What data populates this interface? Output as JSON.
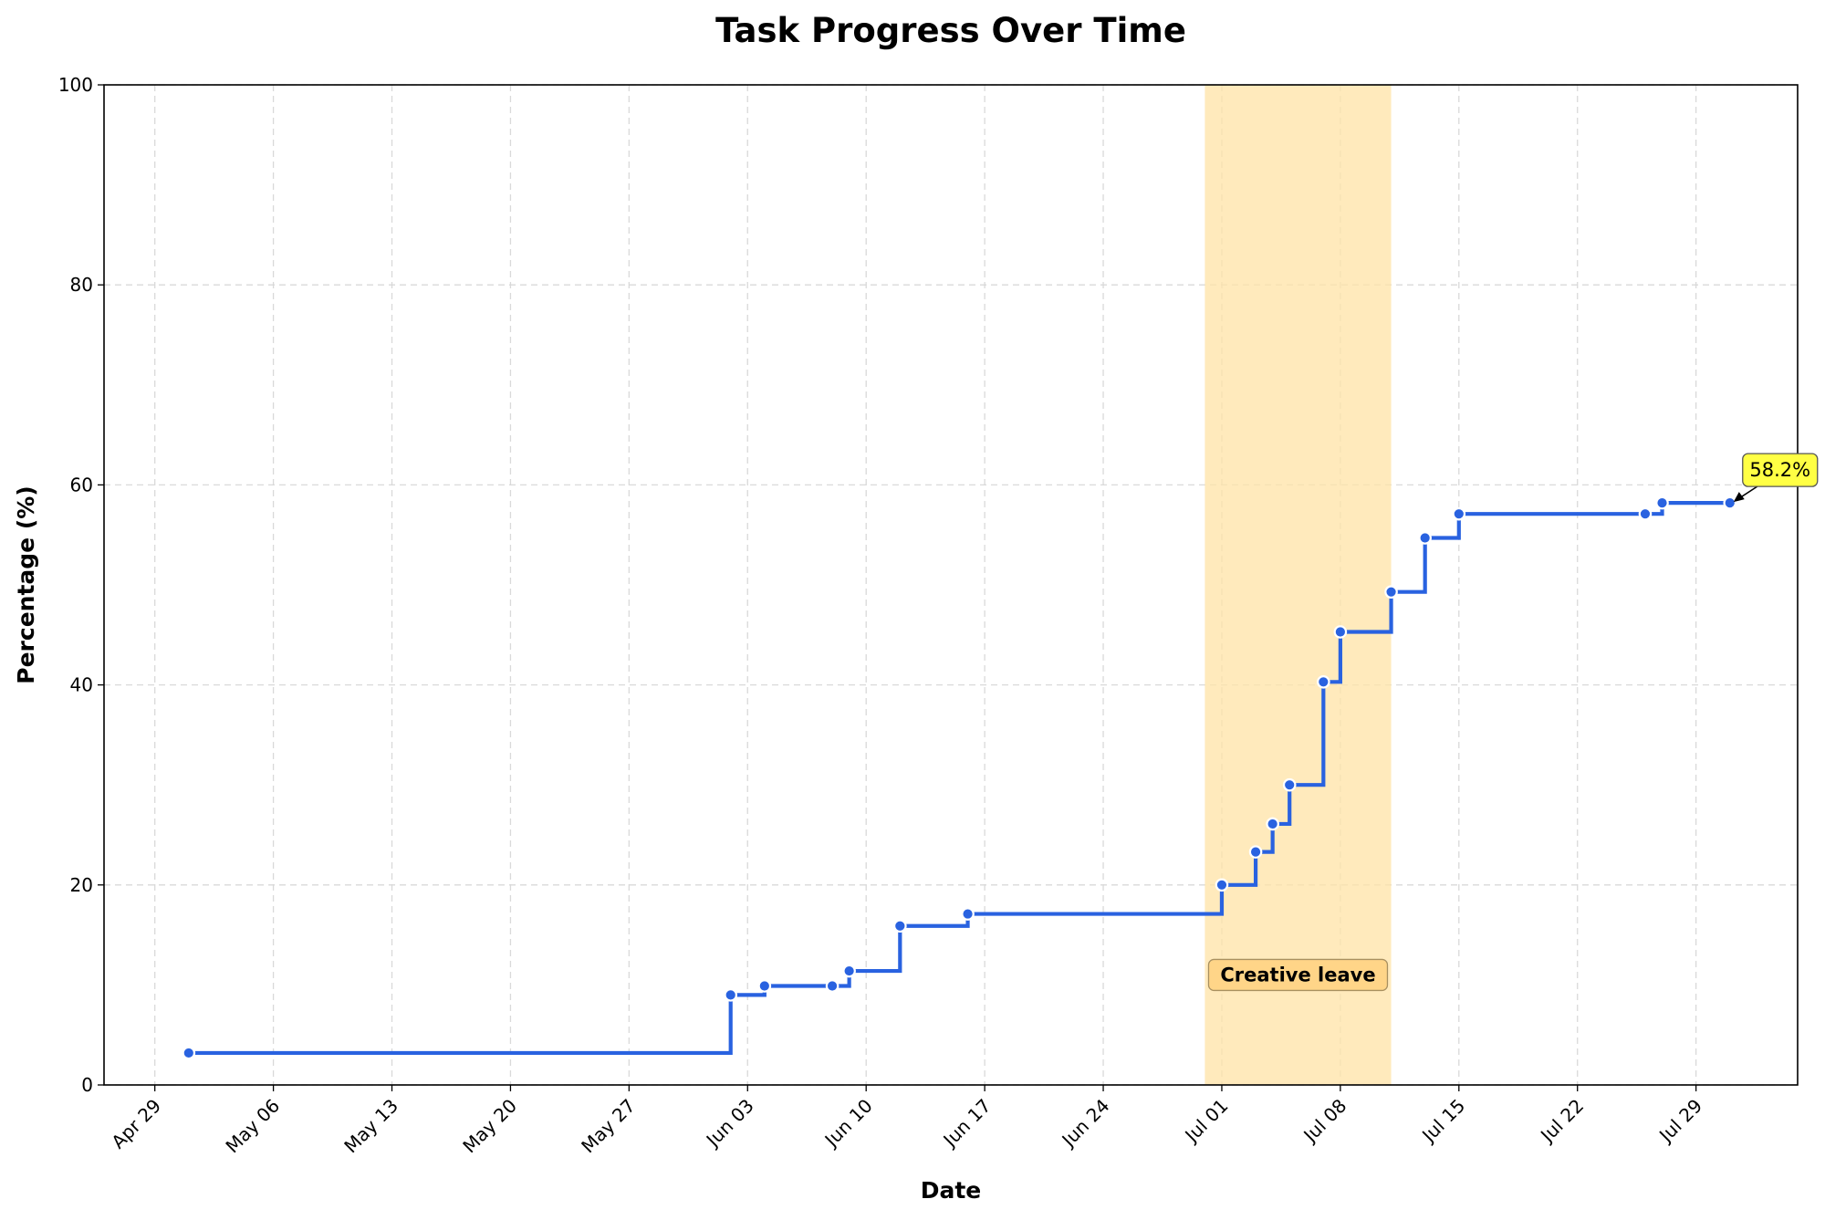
{
  "chart_data": {
    "type": "line",
    "step": "post",
    "title": "Task Progress Over Time",
    "xlabel": "Date",
    "ylabel": "Percentage (%)",
    "xlim": [
      "2024-04-26",
      "2024-08-04"
    ],
    "ylim": [
      0,
      100
    ],
    "grid": true,
    "x_ticks": [
      {
        "date": "2024-04-29",
        "label": "Apr 29"
      },
      {
        "date": "2024-05-06",
        "label": "May 06"
      },
      {
        "date": "2024-05-13",
        "label": "May 13"
      },
      {
        "date": "2024-05-20",
        "label": "May 20"
      },
      {
        "date": "2024-05-27",
        "label": "May 27"
      },
      {
        "date": "2024-06-03",
        "label": "Jun 03"
      },
      {
        "date": "2024-06-10",
        "label": "Jun 10"
      },
      {
        "date": "2024-06-17",
        "label": "Jun 17"
      },
      {
        "date": "2024-06-24",
        "label": "Jun 24"
      },
      {
        "date": "2024-07-01",
        "label": "Jul 01"
      },
      {
        "date": "2024-07-08",
        "label": "Jul 08"
      },
      {
        "date": "2024-07-15",
        "label": "Jul 15"
      },
      {
        "date": "2024-07-22",
        "label": "Jul 22"
      },
      {
        "date": "2024-07-29",
        "label": "Jul 29"
      }
    ],
    "y_ticks": [
      0,
      20,
      40,
      60,
      80,
      100
    ],
    "series": [
      {
        "color": "#2962e0",
        "points": [
          {
            "x": "2024-05-01",
            "y": 3.2
          },
          {
            "x": "2024-06-02",
            "y": 9.0
          },
          {
            "x": "2024-06-04",
            "y": 9.9
          },
          {
            "x": "2024-06-08",
            "y": 9.9
          },
          {
            "x": "2024-06-09",
            "y": 11.4
          },
          {
            "x": "2024-06-12",
            "y": 15.9
          },
          {
            "x": "2024-06-16",
            "y": 17.1
          },
          {
            "x": "2024-07-01",
            "y": 20.0
          },
          {
            "x": "2024-07-03",
            "y": 23.3
          },
          {
            "x": "2024-07-04",
            "y": 26.1
          },
          {
            "x": "2024-07-05",
            "y": 30.0
          },
          {
            "x": "2024-07-07",
            "y": 40.3
          },
          {
            "x": "2024-07-08",
            "y": 45.3
          },
          {
            "x": "2024-07-11",
            "y": 49.3
          },
          {
            "x": "2024-07-13",
            "y": 54.7
          },
          {
            "x": "2024-07-15",
            "y": 57.1
          },
          {
            "x": "2024-07-26",
            "y": 57.1
          },
          {
            "x": "2024-07-27",
            "y": 58.2
          },
          {
            "x": "2024-07-31",
            "y": 58.2
          }
        ]
      }
    ],
    "shaded_regions": [
      {
        "start": "2024-06-30",
        "end": "2024-07-11",
        "label": "Creative leave",
        "color": "#ffe3a6"
      }
    ],
    "annotations": [
      {
        "x": "2024-07-31",
        "y": 58.2,
        "text": "58.2%",
        "box_color": "#ffff44"
      }
    ]
  }
}
